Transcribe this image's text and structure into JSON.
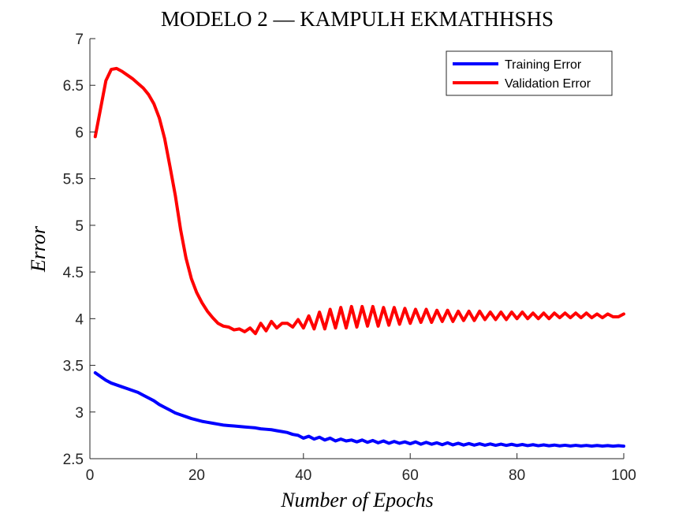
{
  "chart_data": {
    "type": "line",
    "title": "MODELO 2 — KAMPULH EKMATHHSHS",
    "xlabel": "Number of Epochs",
    "ylabel": "Error",
    "xlim": [
      0,
      100
    ],
    "ylim": [
      2.5,
      7
    ],
    "xticks": [
      0,
      20,
      40,
      60,
      80,
      100
    ],
    "yticks": [
      2.5,
      3,
      3.5,
      4,
      4.5,
      5,
      5.5,
      6,
      6.5,
      7
    ],
    "grid": false,
    "legend_position": "top-right",
    "x": [
      1,
      2,
      3,
      4,
      5,
      6,
      7,
      8,
      9,
      10,
      11,
      12,
      13,
      14,
      15,
      16,
      17,
      18,
      19,
      20,
      21,
      22,
      23,
      24,
      25,
      26,
      27,
      28,
      29,
      30,
      31,
      32,
      33,
      34,
      35,
      36,
      37,
      38,
      39,
      40,
      41,
      42,
      43,
      44,
      45,
      46,
      47,
      48,
      49,
      50,
      51,
      52,
      53,
      54,
      55,
      56,
      57,
      58,
      59,
      60,
      61,
      62,
      63,
      64,
      65,
      66,
      67,
      68,
      69,
      70,
      71,
      72,
      73,
      74,
      75,
      76,
      77,
      78,
      79,
      80,
      81,
      82,
      83,
      84,
      85,
      86,
      87,
      88,
      89,
      90,
      91,
      92,
      93,
      94,
      95,
      96,
      97,
      98,
      99,
      100
    ],
    "series": [
      {
        "name": "Training Error",
        "color": "#0000ff",
        "values": [
          3.42,
          3.38,
          3.34,
          3.31,
          3.29,
          3.27,
          3.25,
          3.23,
          3.21,
          3.18,
          3.15,
          3.12,
          3.08,
          3.05,
          3.02,
          2.99,
          2.97,
          2.95,
          2.93,
          2.915,
          2.9,
          2.89,
          2.88,
          2.87,
          2.86,
          2.855,
          2.85,
          2.845,
          2.84,
          2.835,
          2.83,
          2.82,
          2.815,
          2.81,
          2.8,
          2.79,
          2.78,
          2.76,
          2.75,
          2.72,
          2.74,
          2.71,
          2.73,
          2.7,
          2.72,
          2.69,
          2.71,
          2.69,
          2.7,
          2.68,
          2.7,
          2.675,
          2.695,
          2.67,
          2.69,
          2.665,
          2.685,
          2.665,
          2.68,
          2.66,
          2.68,
          2.655,
          2.675,
          2.655,
          2.67,
          2.65,
          2.67,
          2.648,
          2.665,
          2.646,
          2.662,
          2.645,
          2.66,
          2.644,
          2.658,
          2.643,
          2.656,
          2.642,
          2.654,
          2.641,
          2.652,
          2.64,
          2.65,
          2.639,
          2.648,
          2.638,
          2.646,
          2.637,
          2.644,
          2.636,
          2.643,
          2.636,
          2.642,
          2.635,
          2.641,
          2.635,
          2.64,
          2.634,
          2.639,
          2.634
        ]
      },
      {
        "name": "Validation Error",
        "color": "#ff0000",
        "values": [
          5.95,
          6.25,
          6.55,
          6.67,
          6.68,
          6.65,
          6.61,
          6.57,
          6.52,
          6.47,
          6.4,
          6.3,
          6.15,
          5.93,
          5.63,
          5.32,
          4.95,
          4.65,
          4.43,
          4.28,
          4.17,
          4.08,
          4.01,
          3.95,
          3.92,
          3.91,
          3.88,
          3.89,
          3.86,
          3.9,
          3.84,
          3.95,
          3.87,
          3.97,
          3.9,
          3.95,
          3.95,
          3.91,
          3.99,
          3.9,
          4.03,
          3.89,
          4.07,
          3.89,
          4.1,
          3.9,
          4.12,
          3.9,
          4.13,
          3.91,
          4.13,
          3.92,
          4.13,
          3.92,
          4.12,
          3.93,
          4.12,
          3.94,
          4.11,
          3.95,
          4.1,
          3.96,
          4.1,
          3.96,
          4.09,
          3.97,
          4.09,
          3.97,
          4.08,
          3.98,
          4.08,
          3.98,
          4.08,
          3.99,
          4.07,
          3.99,
          4.07,
          3.99,
          4.07,
          4.0,
          4.07,
          4.0,
          4.06,
          4.0,
          4.06,
          4.0,
          4.06,
          4.01,
          4.06,
          4.01,
          4.06,
          4.01,
          4.06,
          4.01,
          4.05,
          4.01,
          4.05,
          4.02,
          4.02,
          4.05
        ]
      }
    ]
  }
}
